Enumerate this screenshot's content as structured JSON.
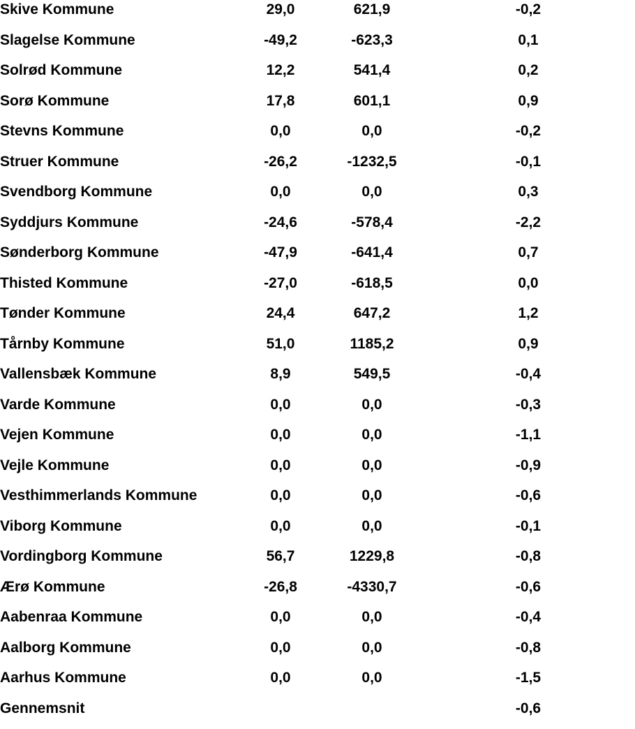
{
  "table": {
    "footer_label": "Gennemsnit",
    "rows": [
      {
        "name": "Skive Kommune",
        "v1": "29,0",
        "v2": "621,9",
        "v3": "-0,2"
      },
      {
        "name": "Slagelse Kommune",
        "v1": "-49,2",
        "v2": "-623,3",
        "v3": "0,1"
      },
      {
        "name": "Solrød Kommune",
        "v1": "12,2",
        "v2": "541,4",
        "v3": "0,2"
      },
      {
        "name": "Sorø Kommune",
        "v1": "17,8",
        "v2": "601,1",
        "v3": "0,9"
      },
      {
        "name": "Stevns Kommune",
        "v1": "0,0",
        "v2": "0,0",
        "v3": "-0,2"
      },
      {
        "name": "Struer Kommune",
        "v1": "-26,2",
        "v2": "-1232,5",
        "v3": "-0,1"
      },
      {
        "name": "Svendborg Kommune",
        "v1": "0,0",
        "v2": "0,0",
        "v3": "0,3"
      },
      {
        "name": "Syddjurs Kommune",
        "v1": "-24,6",
        "v2": "-578,4",
        "v3": "-2,2"
      },
      {
        "name": "Sønderborg Kommune",
        "v1": "-47,9",
        "v2": "-641,4",
        "v3": "0,7"
      },
      {
        "name": "Thisted Kommune",
        "v1": "-27,0",
        "v2": "-618,5",
        "v3": "0,0"
      },
      {
        "name": "Tønder Kommune",
        "v1": "24,4",
        "v2": "647,2",
        "v3": "1,2"
      },
      {
        "name": "Tårnby Kommune",
        "v1": "51,0",
        "v2": "1185,2",
        "v3": "0,9"
      },
      {
        "name": "Vallensbæk Kommune",
        "v1": "8,9",
        "v2": "549,5",
        "v3": "-0,4"
      },
      {
        "name": "Varde Kommune",
        "v1": "0,0",
        "v2": "0,0",
        "v3": "-0,3"
      },
      {
        "name": "Vejen Kommune",
        "v1": "0,0",
        "v2": "0,0",
        "v3": "-1,1"
      },
      {
        "name": "Vejle Kommune",
        "v1": "0,0",
        "v2": "0,0",
        "v3": "-0,9"
      },
      {
        "name": "Vesthimmerlands Kommune",
        "v1": "0,0",
        "v2": "0,0",
        "v3": "-0,6"
      },
      {
        "name": "Viborg Kommune",
        "v1": "0,0",
        "v2": "0,0",
        "v3": "-0,1"
      },
      {
        "name": "Vordingborg Kommune",
        "v1": "56,7",
        "v2": "1229,8",
        "v3": "-0,8"
      },
      {
        "name": "Ærø Kommune",
        "v1": "-26,8",
        "v2": "-4330,7",
        "v3": "-0,6"
      },
      {
        "name": "Aabenraa Kommune",
        "v1": "0,0",
        "v2": "0,0",
        "v3": "-0,4"
      },
      {
        "name": "Aalborg Kommune",
        "v1": "0,0",
        "v2": "0,0",
        "v3": "-0,8"
      },
      {
        "name": "Aarhus Kommune",
        "v1": "0,0",
        "v2": "0,0",
        "v3": "-1,5"
      },
      {
        "name": "Gennemsnit",
        "v1": "",
        "v2": "",
        "v3": "-0,6"
      }
    ],
    "text_color": "#000000",
    "background_color": "#ffffff"
  }
}
